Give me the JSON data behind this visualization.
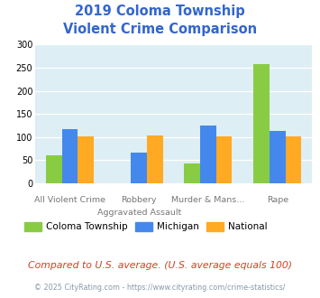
{
  "title_line1": "2019 Coloma Township",
  "title_line2": "Violent Crime Comparison",
  "title_color": "#3366cc",
  "cat_labels_top": [
    "",
    "Robbery",
    "Murder & Mans...",
    ""
  ],
  "cat_labels_bot": [
    "All Violent Crime",
    "Aggravated Assault",
    "",
    "Rape"
  ],
  "coloma_values": [
    60,
    0,
    43,
    258
  ],
  "michigan_values": [
    117,
    67,
    125,
    113
  ],
  "national_values": [
    102,
    103,
    102,
    102
  ],
  "coloma_color": "#88cc44",
  "michigan_color": "#4488ee",
  "national_color": "#ffaa22",
  "ylim": [
    0,
    300
  ],
  "yticks": [
    0,
    50,
    100,
    150,
    200,
    250,
    300
  ],
  "plot_bg": "#ddeef4",
  "legend_labels": [
    "Coloma Township",
    "Michigan",
    "National"
  ],
  "footer_text": "Compared to U.S. average. (U.S. average equals 100)",
  "credit_text": "© 2025 CityRating.com - https://www.cityrating.com/crime-statistics/",
  "footer_color": "#cc4422",
  "credit_color": "#8899aa"
}
